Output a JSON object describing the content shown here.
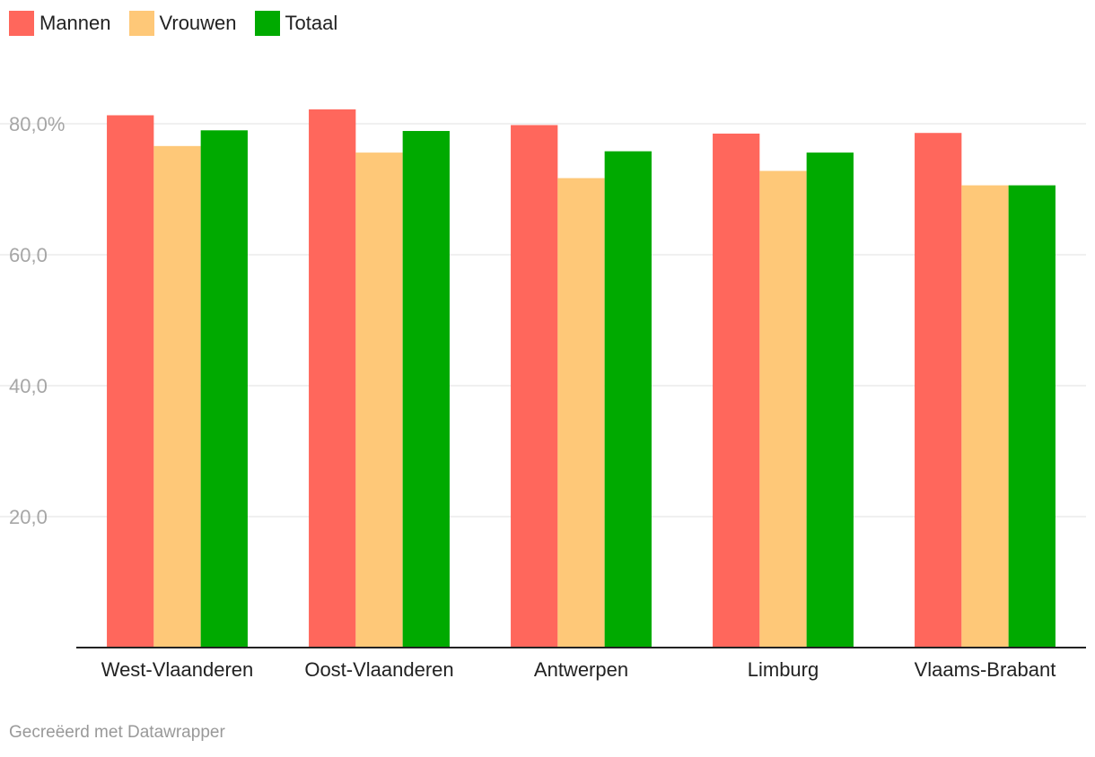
{
  "chart_data": {
    "type": "bar",
    "categories": [
      "West-Vlaanderen",
      "Oost-Vlaanderen",
      "Antwerpen",
      "Limburg",
      "Vlaams-Brabant"
    ],
    "series": [
      {
        "name": "Mannen",
        "color": "#ff675c",
        "values": [
          81.3,
          82.2,
          79.8,
          78.5,
          78.6
        ]
      },
      {
        "name": "Vrouwen",
        "color": "#fec878",
        "values": [
          76.6,
          75.6,
          71.7,
          72.8,
          70.6
        ]
      },
      {
        "name": "Totaal",
        "color": "#00aa00",
        "values": [
          79.0,
          78.9,
          75.8,
          75.6,
          70.6
        ]
      }
    ],
    "yticks": [
      {
        "value": 20,
        "label": "20,0"
      },
      {
        "value": 40,
        "label": "40,0"
      },
      {
        "value": 60,
        "label": "60,0"
      },
      {
        "value": 80,
        "label": "80,0%"
      }
    ],
    "ylim": [
      0,
      80
    ],
    "grid": true,
    "legend": "top-left"
  },
  "footer": {
    "credit": "Gecreëerd met Datawrapper"
  }
}
